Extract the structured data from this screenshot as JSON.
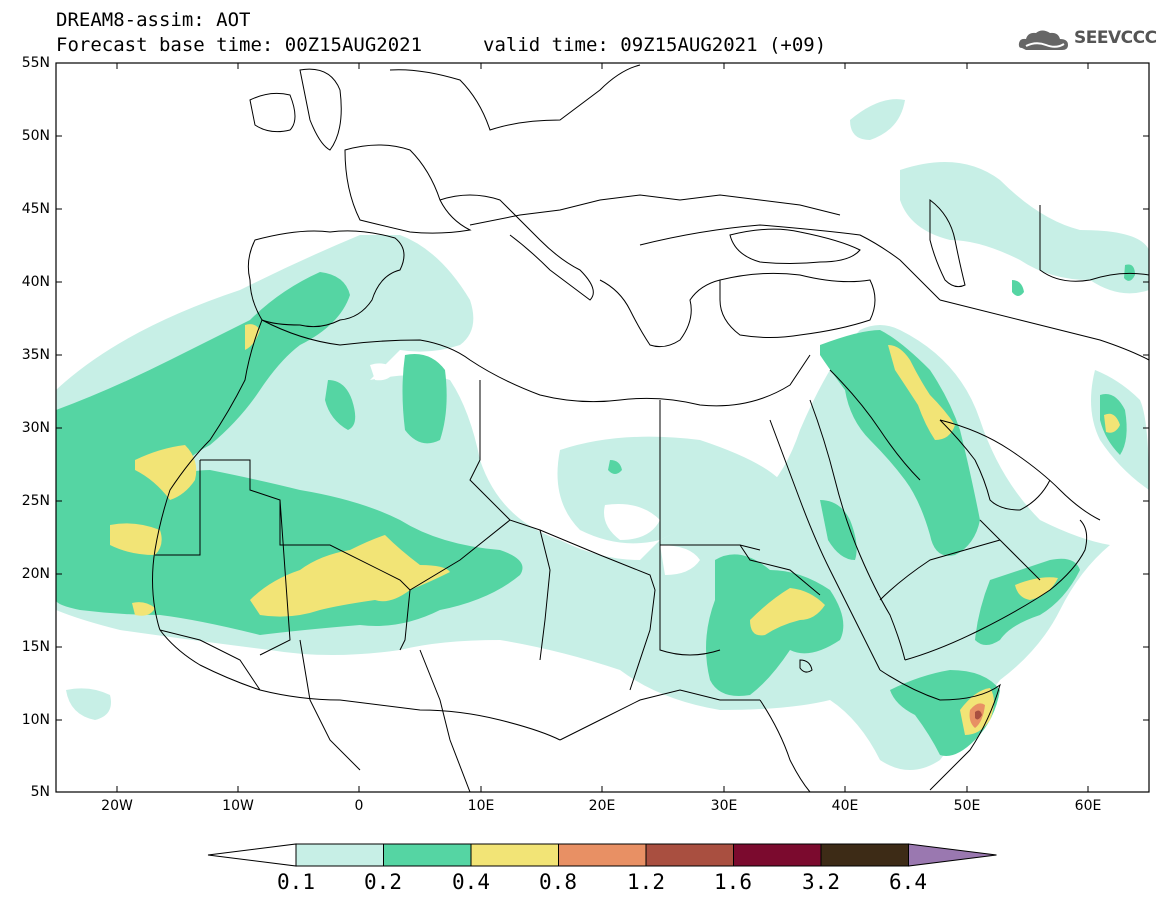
{
  "header": {
    "line1": "DREAM8-assim: AOT",
    "line2": "Forecast base time: 00Z15AUG2021",
    "valid": "valid time: 09Z15AUG2021 (+09)",
    "logo": "SEEVCCC"
  },
  "axes": {
    "lat_labels": [
      "55N",
      "50N",
      "45N",
      "40N",
      "35N",
      "30N",
      "25N",
      "20N",
      "15N",
      "10N",
      "5N"
    ],
    "lon_labels": [
      "20W",
      "10W",
      "0",
      "10E",
      "20E",
      "30E",
      "40E",
      "50E",
      "60E"
    ]
  },
  "colorbar": {
    "levels": [
      "0.1",
      "0.2",
      "0.4",
      "0.8",
      "1.2",
      "1.6",
      "3.2",
      "6.4"
    ],
    "colors": [
      "#c7efe6",
      "#55d5a3",
      "#f2e476",
      "#e89064",
      "#a94f40",
      "#7b0a2e",
      "#3d2b16",
      "#9a78b0"
    ]
  },
  "colors": {
    "c1": "#c7efe6",
    "c2": "#55d5a3",
    "c3": "#f2e476",
    "c4": "#e89064",
    "c5": "#a94f40"
  }
}
